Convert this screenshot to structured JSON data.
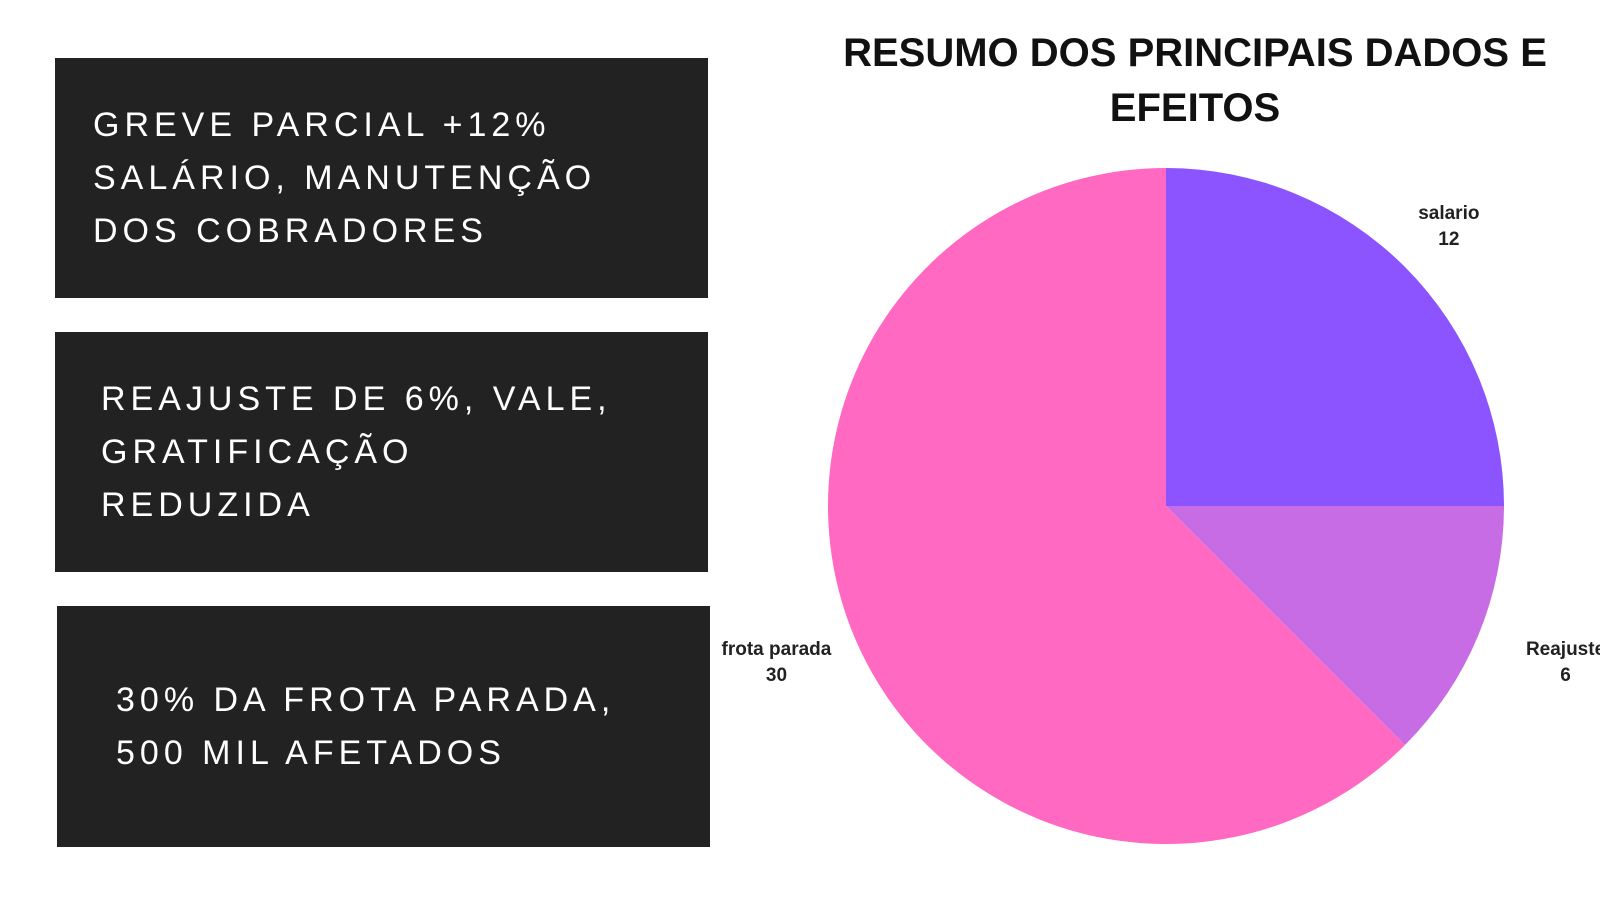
{
  "cards": [
    {
      "text": "GREVE PARCIAL +12%\nSALÁRIO, MANUTENÇÃO\nDOS COBRADORES"
    },
    {
      "text": "REAJUSTE DE 6%, VALE,\nGRATIFICAÇÃO\nREDUZIDA"
    },
    {
      "text": "30% DA FROTA PARADA,\n500 MIL AFETADOS"
    }
  ],
  "chart_data": {
    "type": "pie",
    "title": "RESUMO DOS PRINCIPAIS DADOS E EFEITOS",
    "slices": [
      {
        "label": "salario",
        "value": 12,
        "value_label": "12",
        "color": "#8b54fe"
      },
      {
        "label": "Reajuste",
        "value": 6,
        "value_label": "6",
        "color": "#c86ce6"
      },
      {
        "label": "frota parada",
        "value": 30,
        "value_label": "30",
        "color": "#ff69c2"
      }
    ],
    "start_angle_deg": 0,
    "direction": "clockwise",
    "legend": "none"
  },
  "colors": {
    "card_background": "#222222",
    "card_text": "#ffffff",
    "title_text": "#111111",
    "label_text": "#222222"
  }
}
